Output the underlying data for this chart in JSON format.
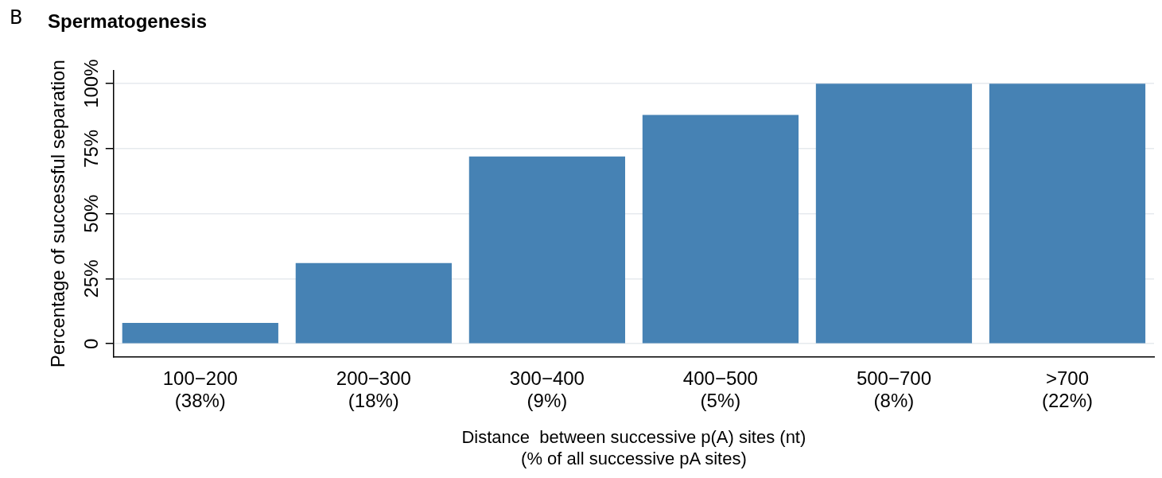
{
  "chart_data": {
    "type": "bar",
    "title": "Spermatogenesis",
    "annotations": [
      "B"
    ],
    "categories": [
      "100−200\n(38%)",
      "200−300\n(18%)",
      "300−400\n(9%)",
      "400−500\n(5%)",
      "500−700\n(8%)",
      ">700\n(22%)"
    ],
    "values": [
      8,
      31,
      72,
      88,
      100,
      100
    ],
    "color": "#4682b4",
    "xlabel": "Distance  between successive p(A) sites (nt)\n(% of all successive pA sites)",
    "ylabel": "Percentage of successful separation",
    "ylim": [
      -5,
      105
    ],
    "yticks": [
      {
        "value": 0,
        "label": "0"
      },
      {
        "value": 25,
        "label": "25%"
      },
      {
        "value": 50,
        "label": "50%"
      },
      {
        "value": 75,
        "label": "75%"
      },
      {
        "value": 100,
        "label": "100%"
      }
    ],
    "grid": "y",
    "legend": false
  }
}
